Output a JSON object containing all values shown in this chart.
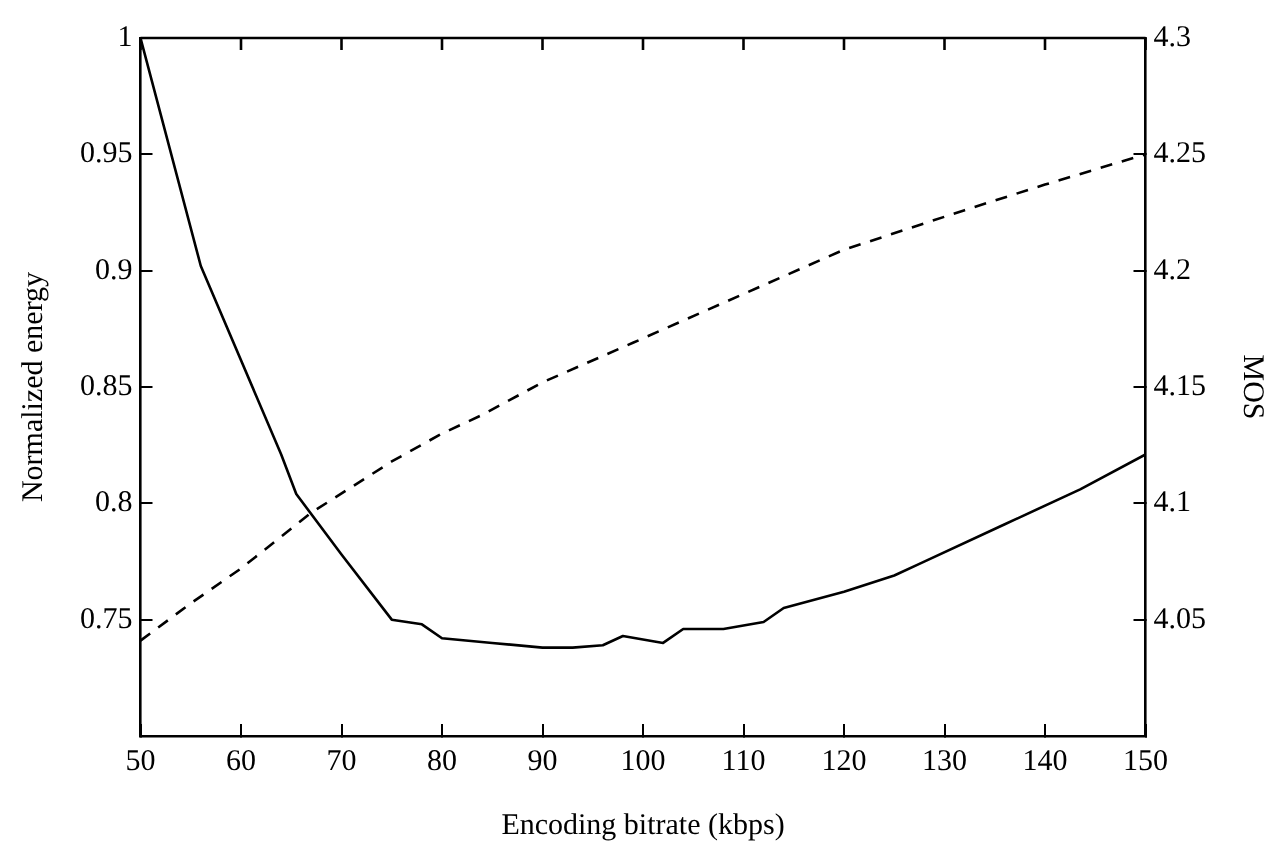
{
  "chart_data": {
    "type": "line",
    "xlabel": "Encoding bitrate (kbps)",
    "ylabel": "Normalized energy",
    "y2label": "MOS",
    "xlim": [
      50,
      150
    ],
    "xticks": [
      50,
      60,
      70,
      80,
      90,
      100,
      110,
      120,
      130,
      140,
      150
    ],
    "ylim": [
      0.7,
      1
    ],
    "yticks": [
      0.75,
      0.8,
      0.85,
      0.9,
      0.95,
      1
    ],
    "y2lim": [
      4,
      4.3
    ],
    "y2ticks": [
      4.05,
      4.1,
      4.15,
      4.2,
      4.25,
      4.3
    ],
    "grid": false,
    "legend": false,
    "marker": "none",
    "series": [
      {
        "color": "#000000",
        "line_style": "solid",
        "x": [
          50,
          56,
          64,
          65.5,
          70,
          75,
          78,
          80,
          85,
          90,
          93,
          96,
          98,
          102,
          104,
          108,
          112,
          114,
          120,
          125,
          127.5,
          136,
          143.5,
          150
        ],
        "values": [
          1,
          0.902,
          0.821,
          0.804,
          0.778,
          0.75,
          0.748,
          0.742,
          0.74,
          0.738,
          0.738,
          0.739,
          0.743,
          0.74,
          0.746,
          0.746,
          0.749,
          0.755,
          0.762,
          0.769,
          0.774,
          0.791,
          0.806,
          0.821
        ]
      },
      {
        "color": "#000000",
        "line_style": "dashed",
        "axis": "y2",
        "x": [
          50,
          55,
          60,
          67,
          75,
          80,
          84,
          90,
          99,
          110,
          120,
          132,
          140,
          150
        ],
        "values": [
          4.041,
          4.057,
          4.072,
          4.096,
          4.118,
          4.13,
          4.138,
          4.152,
          4.169,
          4.19,
          4.209,
          4.226,
          4.237,
          4.25
        ]
      }
    ]
  }
}
